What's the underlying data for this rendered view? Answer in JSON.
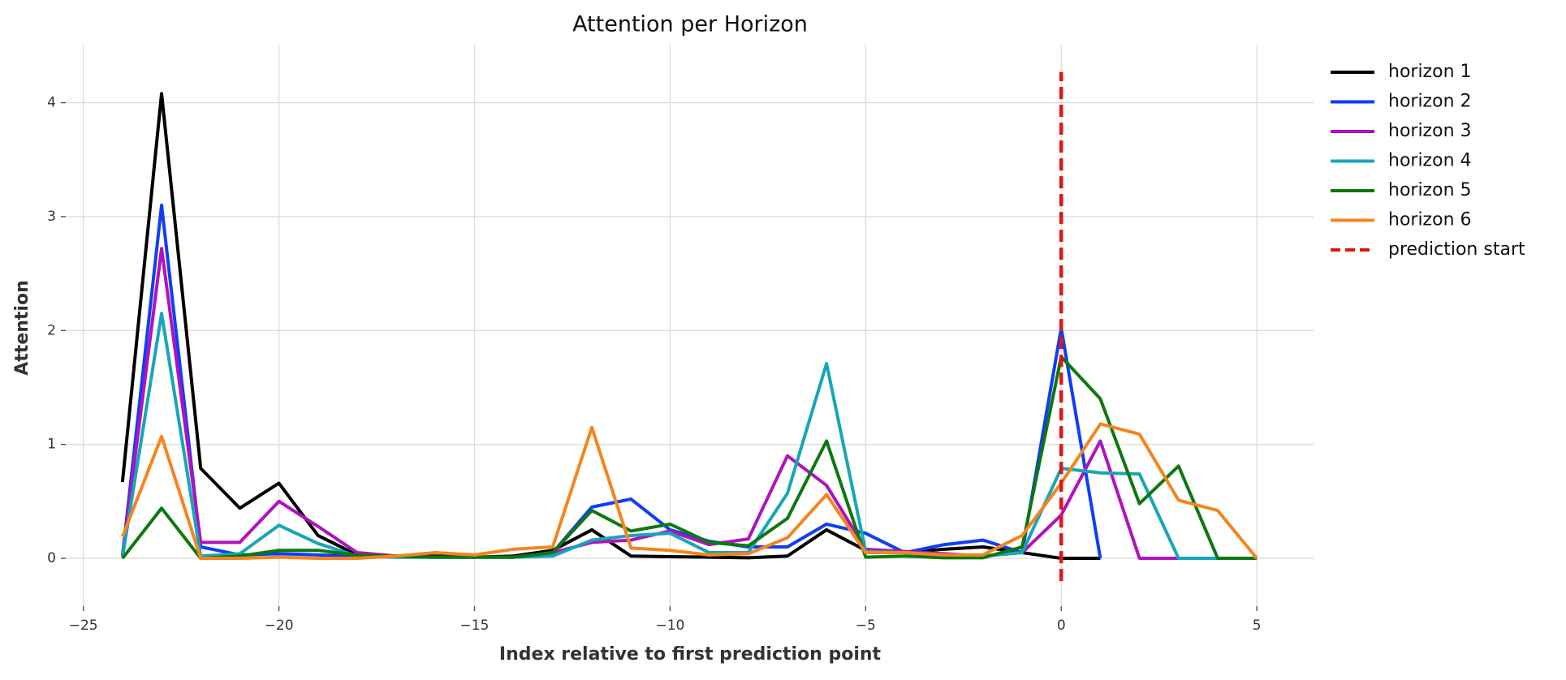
{
  "chart_data": {
    "type": "line",
    "title": "Attention per Horizon",
    "x_label": "Index relative to first prediction point",
    "y_label": "Attention",
    "x": [
      -24,
      -23,
      -22,
      -21,
      -20,
      -19,
      -18,
      -17,
      -16,
      -15,
      -14,
      -13,
      -12,
      -11,
      -10,
      -9,
      -8,
      -7,
      -6,
      -5,
      -4,
      -3,
      -2,
      -1,
      0,
      1,
      2,
      3,
      4,
      5
    ],
    "series": [
      {
        "name": "horizon 1",
        "color": "#000000",
        "values": [
          0.67,
          4.08,
          0.79,
          0.44,
          0.66,
          0.2,
          0.03,
          0.02,
          0.02,
          0.01,
          0.02,
          0.07,
          0.25,
          0.02,
          0.015,
          0.01,
          0.005,
          0.02,
          0.25,
          0.07,
          0.05,
          0.08,
          0.1,
          0.05,
          0,
          0,
          null,
          null,
          null,
          null
        ]
      },
      {
        "name": "horizon 2",
        "color": "#0f3ef5",
        "values": [
          0.02,
          3.1,
          0.1,
          0.03,
          0.04,
          0.03,
          0.02,
          0.01,
          0.01,
          0.01,
          0.01,
          0.05,
          0.45,
          0.52,
          0.25,
          0.15,
          0.1,
          0.1,
          0.3,
          0.22,
          0.05,
          0.12,
          0.16,
          0.05,
          2.02,
          0,
          null,
          null,
          null,
          null
        ]
      },
      {
        "name": "horizon 3",
        "color": "#b012bd",
        "values": [
          0.02,
          2.72,
          0.14,
          0.14,
          0.5,
          0.28,
          0.05,
          0.02,
          0.01,
          0.01,
          0.01,
          0.05,
          0.14,
          0.16,
          0.24,
          0.12,
          0.17,
          0.9,
          0.64,
          0.08,
          0.06,
          0.04,
          0.02,
          0.05,
          0.38,
          1.03,
          0,
          0,
          null,
          null
        ]
      },
      {
        "name": "horizon 4",
        "color": "#17a6b8",
        "values": [
          0.01,
          2.15,
          0.02,
          0.04,
          0.29,
          0.13,
          0.02,
          0.01,
          0.01,
          0.01,
          0.01,
          0.02,
          0.16,
          0.2,
          0.22,
          0.05,
          0.05,
          0.57,
          1.71,
          0.06,
          0.05,
          0.03,
          0.02,
          0.05,
          0.79,
          0.75,
          0.74,
          0,
          0,
          null
        ]
      },
      {
        "name": "horizon 5",
        "color": "#0d780f",
        "values": [
          0,
          0.44,
          0,
          0.02,
          0.07,
          0.07,
          0.03,
          0.02,
          0.01,
          0.01,
          0.01,
          0.05,
          0.42,
          0.24,
          0.3,
          0.14,
          0.11,
          0.35,
          1.03,
          0.01,
          0.02,
          0.005,
          0.005,
          0.1,
          1.77,
          1.4,
          0.48,
          0.81,
          0,
          0
        ]
      },
      {
        "name": "horizon 6",
        "color": "#f5841f",
        "values": [
          0.19,
          1.07,
          0,
          0,
          0.01,
          0,
          0,
          0.02,
          0.05,
          0.03,
          0.08,
          0.1,
          1.15,
          0.09,
          0.07,
          0.03,
          0.04,
          0.18,
          0.56,
          0.05,
          0.05,
          0.03,
          0.03,
          0.2,
          0.66,
          1.18,
          1.09,
          0.51,
          0.42,
          0
        ]
      }
    ],
    "vline": {
      "name": "prediction start",
      "color": "#e31414",
      "x": 0,
      "y": [
        -0.2,
        4.27
      ]
    },
    "xlim": [
      -25.45,
      6.45
    ],
    "ylim": [
      -0.42,
      4.51
    ],
    "xticks": [
      {
        "value": -25,
        "label": "−25"
      },
      {
        "value": -20,
        "label": "−20"
      },
      {
        "value": -15,
        "label": "−15"
      },
      {
        "value": -10,
        "label": "−10"
      },
      {
        "value": -5,
        "label": "−5"
      },
      0,
      5
    ],
    "yticks": [
      0,
      1,
      2,
      3,
      4
    ],
    "grid": true,
    "legend": "outside-right"
  }
}
